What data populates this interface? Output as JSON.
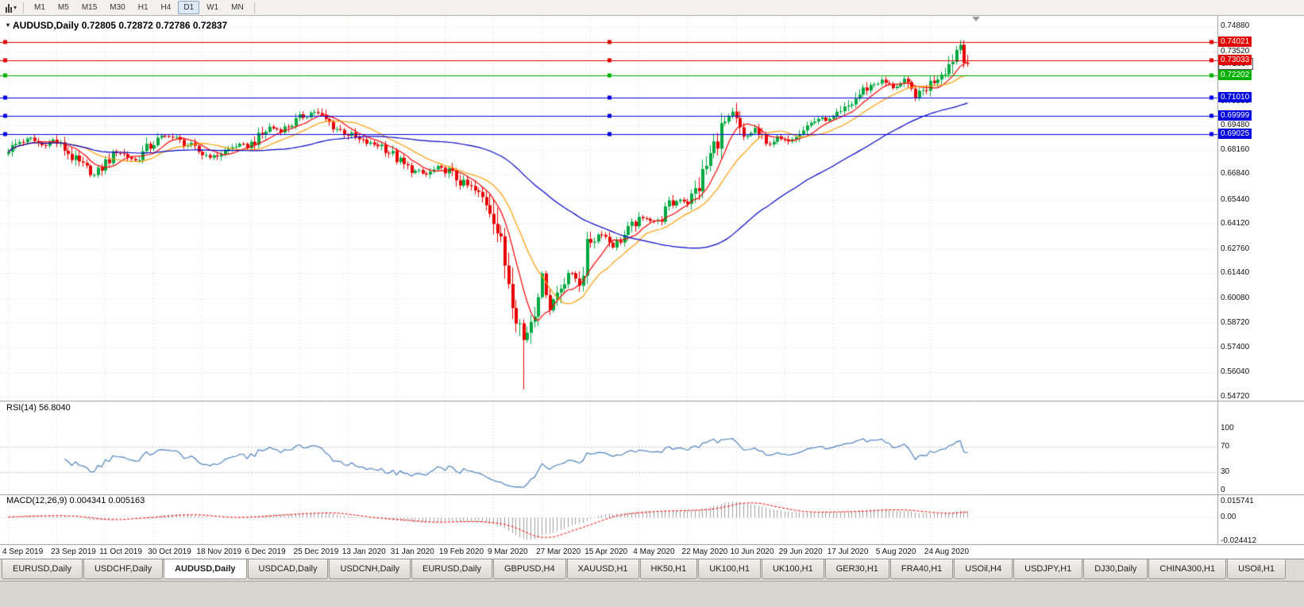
{
  "toolbar": {
    "chart_type_icon": "candlestick-chart-icon",
    "periods": [
      "M1",
      "M5",
      "M15",
      "M30",
      "H1",
      "H4",
      "D1",
      "W1",
      "MN"
    ],
    "active_period": "D1"
  },
  "tabs": [
    {
      "label": "EURUSD,Daily",
      "active": false
    },
    {
      "label": "USDCHF,Daily",
      "active": false
    },
    {
      "label": "AUDUSD,Daily",
      "active": true
    },
    {
      "label": "USDCAD,Daily",
      "active": false
    },
    {
      "label": "USDCNH,Daily",
      "active": false
    },
    {
      "label": "EURUSD,Daily",
      "active": false
    },
    {
      "label": "GBPUSD,H4",
      "active": false
    },
    {
      "label": "XAUUSD,H1",
      "active": false
    },
    {
      "label": "HK50,H1",
      "active": false
    },
    {
      "label": "UK100,H1",
      "active": false
    },
    {
      "label": "UK100,H1",
      "active": false
    },
    {
      "label": "GER30,H1",
      "active": false
    },
    {
      "label": "FRA40,H1",
      "active": false
    },
    {
      "label": "USOil,H4",
      "active": false
    },
    {
      "label": "USDJPY,H1",
      "active": false
    },
    {
      "label": "DJ30,Daily",
      "active": false
    },
    {
      "label": "CHINA300,H1",
      "active": false
    },
    {
      "label": "USOil,H1",
      "active": false
    }
  ],
  "chart_data": {
    "type": "candlestick",
    "symbol": "AUDUSD,Daily",
    "ohlc_label": "0.72805 0.72872 0.72786 0.72837",
    "open": "0.72805",
    "high": "0.72872",
    "low": "0.72786",
    "close": "0.72837",
    "price_axis": {
      "max": 0.7488,
      "min": 0.5472,
      "ticks": [
        "0.74880",
        "0.73520",
        "0.72160",
        "0.70800",
        "0.69480",
        "0.68160",
        "0.66840",
        "0.65440",
        "0.64120",
        "0.62760",
        "0.61440",
        "0.60080",
        "0.58720",
        "0.57400",
        "0.56040",
        "0.54720"
      ]
    },
    "x_labels": [
      "4 Sep 2019",
      "23 Sep 2019",
      "11 Oct 2019",
      "30 Oct 2019",
      "18 Nov 2019",
      "6 Dec 2019",
      "25 Dec 2019",
      "13 Jan 2020",
      "31 Jan 2020",
      "19 Feb 2020",
      "9 Mar 2020",
      "27 Mar 2020",
      "15 Apr 2020",
      "4 May 2020",
      "22 May 2020",
      "10 Jun 2020",
      "29 Jun 2020",
      "17 Jul 2020",
      "5 Aug 2020",
      "24 Aug 2020"
    ],
    "bars_per_label": 13,
    "total_bars": 258,
    "close_keyframes": [
      [
        0,
        0.6815
      ],
      [
        3,
        0.686
      ],
      [
        6,
        0.6875
      ],
      [
        9,
        0.684
      ],
      [
        12,
        0.6868
      ],
      [
        15,
        0.682
      ],
      [
        18,
        0.6755
      ],
      [
        21,
        0.671
      ],
      [
        23,
        0.6675
      ],
      [
        26,
        0.6745
      ],
      [
        29,
        0.6808
      ],
      [
        32,
        0.678
      ],
      [
        34,
        0.6756
      ],
      [
        37,
        0.682
      ],
      [
        40,
        0.6868
      ],
      [
        43,
        0.6895
      ],
      [
        46,
        0.686
      ],
      [
        49,
        0.6832
      ],
      [
        52,
        0.6792
      ],
      [
        55,
        0.6776
      ],
      [
        58,
        0.6806
      ],
      [
        61,
        0.684
      ],
      [
        64,
        0.6836
      ],
      [
        67,
        0.688
      ],
      [
        70,
        0.6938
      ],
      [
        73,
        0.6922
      ],
      [
        76,
        0.6958
      ],
      [
        79,
        0.7
      ],
      [
        82,
        0.7024
      ],
      [
        85,
        0.6976
      ],
      [
        88,
        0.693
      ],
      [
        91,
        0.6902
      ],
      [
        94,
        0.6866
      ],
      [
        97,
        0.6846
      ],
      [
        100,
        0.684
      ],
      [
        103,
        0.6786
      ],
      [
        106,
        0.673
      ],
      [
        109,
        0.6696
      ],
      [
        112,
        0.668
      ],
      [
        115,
        0.6716
      ],
      [
        118,
        0.67
      ],
      [
        121,
        0.664
      ],
      [
        124,
        0.6606
      ],
      [
        127,
        0.6552
      ],
      [
        130,
        0.648
      ],
      [
        132,
        0.628
      ],
      [
        134,
        0.612
      ],
      [
        136,
        0.595
      ],
      [
        138,
        0.578
      ],
      [
        139,
        0.5832
      ],
      [
        141,
        0.598
      ],
      [
        143,
        0.613
      ],
      [
        145,
        0.5962
      ],
      [
        147,
        0.604
      ],
      [
        150,
        0.615
      ],
      [
        153,
        0.61
      ],
      [
        156,
        0.633
      ],
      [
        159,
        0.6366
      ],
      [
        162,
        0.6292
      ],
      [
        165,
        0.635
      ],
      [
        168,
        0.642
      ],
      [
        171,
        0.6446
      ],
      [
        174,
        0.642
      ],
      [
        177,
        0.651
      ],
      [
        180,
        0.655
      ],
      [
        182,
        0.6532
      ],
      [
        185,
        0.662
      ],
      [
        188,
        0.678
      ],
      [
        191,
        0.693
      ],
      [
        194,
        0.701
      ],
      [
        197,
        0.6872
      ],
      [
        200,
        0.693
      ],
      [
        203,
        0.684
      ],
      [
        206,
        0.688
      ],
      [
        208,
        0.6862
      ],
      [
        211,
        0.6906
      ],
      [
        214,
        0.6946
      ],
      [
        217,
        0.6986
      ],
      [
        220,
        0.6976
      ],
      [
        223,
        0.701
      ],
      [
        226,
        0.707
      ],
      [
        229,
        0.714
      ],
      [
        232,
        0.7176
      ],
      [
        234,
        0.719
      ],
      [
        237,
        0.7156
      ],
      [
        240,
        0.7186
      ],
      [
        243,
        0.711
      ],
      [
        245,
        0.7136
      ],
      [
        247,
        0.7176
      ],
      [
        250,
        0.724
      ],
      [
        252,
        0.728
      ],
      [
        254,
        0.736
      ],
      [
        255,
        0.739
      ],
      [
        256,
        0.732
      ],
      [
        257,
        0.72837
      ]
    ],
    "wick_overrides": [
      {
        "bar": 138,
        "low": 0.5512
      },
      {
        "bar": 255,
        "high": 0.7413
      }
    ],
    "up_color": "#00a840",
    "down_color": "#e80000",
    "moving_averages": [
      {
        "name": "fast-ma",
        "period": 8,
        "color": "#ff0000"
      },
      {
        "name": "medium-ma",
        "period": 17,
        "color": "#ff9c00"
      },
      {
        "name": "slow-ma",
        "period": 60,
        "color": "#0000c8"
      }
    ],
    "horizontal_lines": [
      {
        "price": 0.74021,
        "label": "0.74021",
        "color": "#e00000"
      },
      {
        "price": 0.73033,
        "label": "0.73033",
        "color": "#e00000"
      },
      {
        "price": 0.72202,
        "label": "0.72202",
        "color": "#00b000"
      },
      {
        "price": 0.7101,
        "label": "0.71010",
        "color": "#0000e0"
      },
      {
        "price": 0.69999,
        "label": "0.69999",
        "color": "#0000e0"
      },
      {
        "price": 0.69025,
        "label": "0.69025",
        "color": "#0000e0"
      }
    ],
    "current_price": {
      "price": 0.72837,
      "label": "0.72837"
    },
    "rsi": {
      "label": "RSI(14) 56.8040",
      "period": 14,
      "value": "56.8040",
      "levels": [
        "100",
        "70",
        "30",
        "0"
      ],
      "color": "#4f81bd"
    },
    "macd": {
      "label": "MACD(12,26,9) 0.004341 0.005163",
      "values": "0.004341 0.005163",
      "axis_labels": [
        "0.015741",
        "0.00",
        "-0.024412"
      ],
      "axis_max": 0.015741,
      "axis_min": -0.024412,
      "hist_color": "#a0a0a0",
      "signal_color": "#ff0000"
    }
  }
}
